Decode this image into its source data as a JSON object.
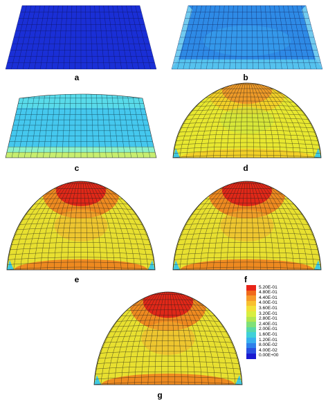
{
  "figure": {
    "panels": [
      {
        "id": "a",
        "caption": "a",
        "state": "flat",
        "colors": [
          "#1a2fd6"
        ]
      },
      {
        "id": "b",
        "caption": "b",
        "state": "slightly-inflated",
        "colors": [
          "#2e8ae6",
          "#3aa6ee",
          "#5fd0f0",
          "#8fe6f2"
        ]
      },
      {
        "id": "c",
        "caption": "c",
        "state": "inflated",
        "colors": [
          "#45c8ee",
          "#5ee0e8",
          "#8ef0c8",
          "#c8ee70"
        ]
      },
      {
        "id": "d",
        "caption": "d",
        "state": "dome",
        "colors": [
          "#e8e830",
          "#c8e640",
          "#f2d028",
          "#ee9a28"
        ]
      },
      {
        "id": "e",
        "caption": "e",
        "state": "tall-dome",
        "colors": [
          "#e8e030",
          "#f2b030",
          "#ee8a20",
          "#e02818"
        ]
      },
      {
        "id": "f",
        "caption": "f",
        "state": "tall-dome",
        "colors": [
          "#e8e030",
          "#f2b030",
          "#ee8a20",
          "#e02818"
        ]
      },
      {
        "id": "g",
        "caption": "g",
        "state": "tall-dome",
        "colors": [
          "#e8e030",
          "#f2b030",
          "#ee8a20",
          "#e02818"
        ]
      }
    ]
  },
  "legend": {
    "items": [
      {
        "label": "5.20E-01",
        "color": "#e82418"
      },
      {
        "label": "4.80E-01",
        "color": "#f06a1c"
      },
      {
        "label": "4.40E-01",
        "color": "#f69a2a"
      },
      {
        "label": "4.00E-01",
        "color": "#f8c030"
      },
      {
        "label": "3.60E-01",
        "color": "#f2e038"
      },
      {
        "label": "3.20E-01",
        "color": "#d8ee40"
      },
      {
        "label": "2.80E-01",
        "color": "#b2e650"
      },
      {
        "label": "2.40E-01",
        "color": "#80e078"
      },
      {
        "label": "2.00E-01",
        "color": "#58d8a8"
      },
      {
        "label": "1.60E-01",
        "color": "#40d0d8"
      },
      {
        "label": "1.20E-01",
        "color": "#38b0ee"
      },
      {
        "label": "8.00E-02",
        "color": "#2e80ea"
      },
      {
        "label": "4.00E-02",
        "color": "#2850e0"
      },
      {
        "label": "0.00E+00",
        "color": "#1a1ad0"
      }
    ]
  }
}
